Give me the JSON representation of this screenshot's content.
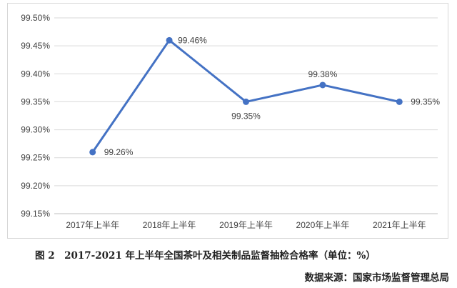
{
  "chart_data": {
    "type": "line",
    "title": "",
    "xlabel": "",
    "ylabel": "",
    "categories": [
      "2017年上半年",
      "2018年上半年",
      "2019年上半年",
      "2020年上半年",
      "2021年上半年"
    ],
    "series": [
      {
        "values": [
          99.26,
          99.46,
          99.35,
          99.38,
          99.35
        ],
        "color": "#4472C4"
      }
    ],
    "data_labels": [
      "99.26%",
      "99.46%",
      "99.35%",
      "99.38%",
      "99.35%"
    ],
    "ylim": [
      99.15,
      99.5
    ],
    "yticks": [
      99.15,
      99.2,
      99.25,
      99.3,
      99.35,
      99.4,
      99.45,
      99.5
    ],
    "ytick_labels": [
      "99.15%",
      "99.20%",
      "99.25%",
      "99.30%",
      "99.35%",
      "99.40%",
      "99.45%",
      "99.50%"
    ],
    "grid": true,
    "legend": "none"
  },
  "caption": "图 2　2017-2021 年上半年全国茶叶及相关制品监督抽检合格率（单位：%）",
  "source": "数据来源：国家市场监督管理总局"
}
